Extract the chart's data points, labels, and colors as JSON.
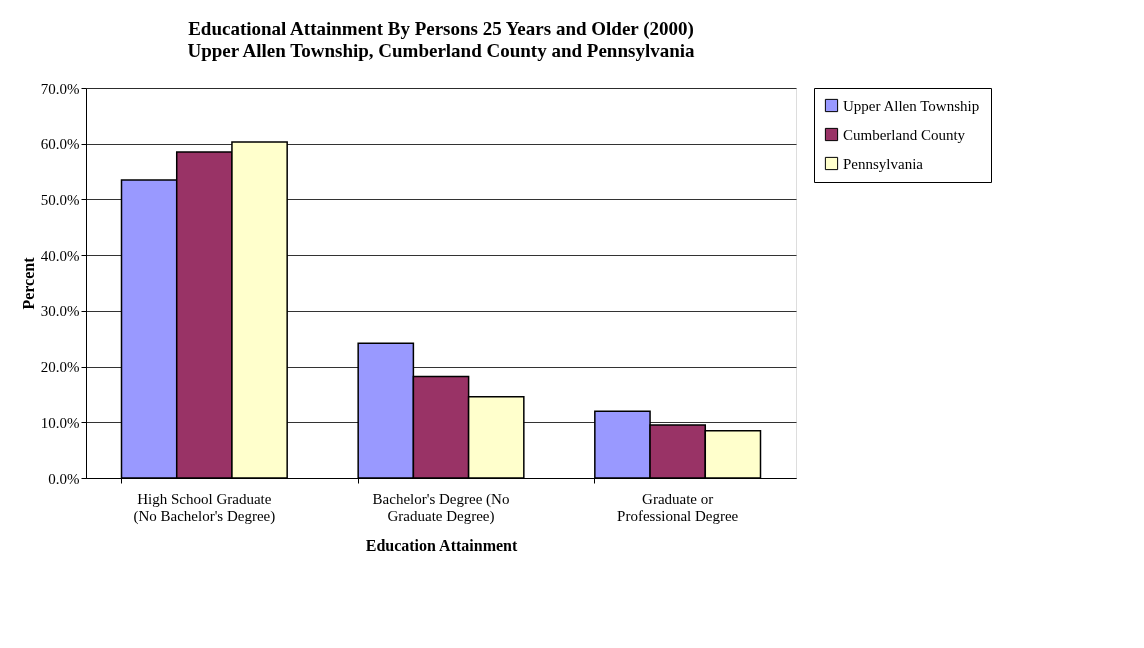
{
  "chart_data": {
    "type": "bar",
    "title": "Educational Attainment By Persons 25 Years and Older (2000)",
    "subtitle": "Upper Allen Township, Cumberland County and Pennsylvania",
    "xlabel": "Education Attainment",
    "ylabel": "Percent",
    "categories": [
      "High School Graduate (No Bachelor's Degree)",
      "Bachelor's Degree (No Graduate Degree)",
      "Graduate or Professional Degree"
    ],
    "series": [
      {
        "name": "Upper Allen Township",
        "color": "#9999ff",
        "values": [
          53.5,
          24.2,
          12.0
        ]
      },
      {
        "name": "Cumberland County",
        "color": "#993366",
        "values": [
          58.5,
          18.2,
          9.5
        ]
      },
      {
        "name": "Pennsylvania",
        "color": "#ffffcc",
        "values": [
          60.3,
          14.6,
          8.5
        ]
      }
    ],
    "ylim": [
      0,
      70
    ],
    "yticks": [
      {
        "value": 0,
        "label": "0.0%"
      },
      {
        "value": 10,
        "label": "10.0%"
      },
      {
        "value": 20,
        "label": "20.0%"
      },
      {
        "value": 30,
        "label": "30.0%"
      },
      {
        "value": 40,
        "label": "40.0%"
      },
      {
        "value": 50,
        "label": "50.0%"
      },
      {
        "value": 60,
        "label": "60.0%"
      },
      {
        "value": 70,
        "label": "70.0%"
      }
    ],
    "grid": "y",
    "legend": "right"
  }
}
